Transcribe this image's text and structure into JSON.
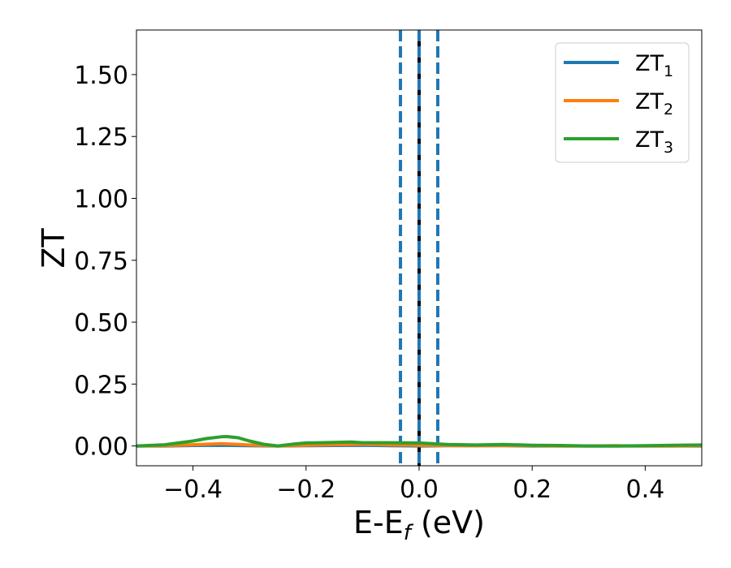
{
  "chart_data": {
    "type": "line",
    "title": "",
    "xlabel": "E-E",
    "xlabel_subscript": "f",
    "xlabel_unit": " (eV)",
    "ylabel": "ZT",
    "xlim": [
      -0.5,
      0.5
    ],
    "ylim": [
      -0.08,
      1.68
    ],
    "grid": false,
    "legend_position": "top-right",
    "x_ticks": [
      -0.4,
      -0.2,
      0.0,
      0.2,
      0.4
    ],
    "x_tick_labels": [
      "−0.4",
      "−0.2",
      "0.0",
      "0.2",
      "0.4"
    ],
    "y_ticks": [
      0.0,
      0.25,
      0.5,
      0.75,
      1.0,
      1.25,
      1.5
    ],
    "y_tick_labels": [
      "0.00",
      "0.25",
      "0.50",
      "0.75",
      "1.00",
      "1.25",
      "1.50"
    ],
    "vertical_lines": [
      {
        "x": -0.033,
        "style": "dashed",
        "color": "#1f77b4"
      },
      {
        "x": 0.0,
        "style": "solid",
        "color": "#000000"
      },
      {
        "x": 0.0,
        "style": "dashed",
        "color": "#1f77b4"
      },
      {
        "x": 0.033,
        "style": "dashed",
        "color": "#1f77b4"
      }
    ],
    "series": [
      {
        "name": "ZT",
        "name_subscript": "1",
        "color": "#1f77b4",
        "x": [
          -0.5,
          -0.45,
          -0.4,
          -0.35,
          -0.3,
          -0.25,
          -0.2,
          -0.15,
          -0.1,
          -0.05,
          0.0,
          0.05,
          0.1,
          0.15,
          0.2,
          0.25,
          0.3,
          0.35,
          0.4,
          0.45,
          0.5
        ],
        "values": [
          0.0,
          0.0,
          0.002,
          0.003,
          0.001,
          0.0,
          0.001,
          0.002,
          0.003,
          0.001,
          0.0,
          0.001,
          0.001,
          0.001,
          0.0,
          0.0,
          0.0,
          0.0,
          0.0,
          0.0,
          0.0
        ]
      },
      {
        "name": "ZT",
        "name_subscript": "2",
        "color": "#ff7f0e",
        "x": [
          -0.5,
          -0.45,
          -0.4,
          -0.35,
          -0.3,
          -0.25,
          -0.2,
          -0.15,
          -0.1,
          -0.05,
          0.0,
          0.05,
          0.1,
          0.15,
          0.2,
          0.25,
          0.3,
          0.35,
          0.4,
          0.45,
          0.5
        ],
        "values": [
          0.0,
          0.001,
          0.005,
          0.009,
          0.004,
          0.0,
          0.003,
          0.005,
          0.007,
          0.004,
          0.003,
          0.002,
          0.001,
          0.002,
          0.001,
          0.0,
          0.0,
          0.001,
          0.0,
          0.0,
          0.001
        ]
      },
      {
        "name": "ZT",
        "name_subscript": "3",
        "color": "#2ca02c",
        "x": [
          -0.5,
          -0.45,
          -0.4,
          -0.375,
          -0.35,
          -0.34,
          -0.32,
          -0.3,
          -0.275,
          -0.25,
          -0.22,
          -0.2,
          -0.15,
          -0.12,
          -0.1,
          -0.05,
          0.0,
          0.05,
          0.1,
          0.15,
          0.2,
          0.25,
          0.3,
          0.35,
          0.4,
          0.45,
          0.5
        ],
        "values": [
          0.0,
          0.005,
          0.02,
          0.03,
          0.037,
          0.038,
          0.033,
          0.02,
          0.007,
          0.0,
          0.008,
          0.012,
          0.014,
          0.016,
          0.013,
          0.013,
          0.012,
          0.006,
          0.004,
          0.006,
          0.003,
          0.002,
          0.0,
          0.0,
          0.001,
          0.003,
          0.004
        ]
      }
    ]
  }
}
